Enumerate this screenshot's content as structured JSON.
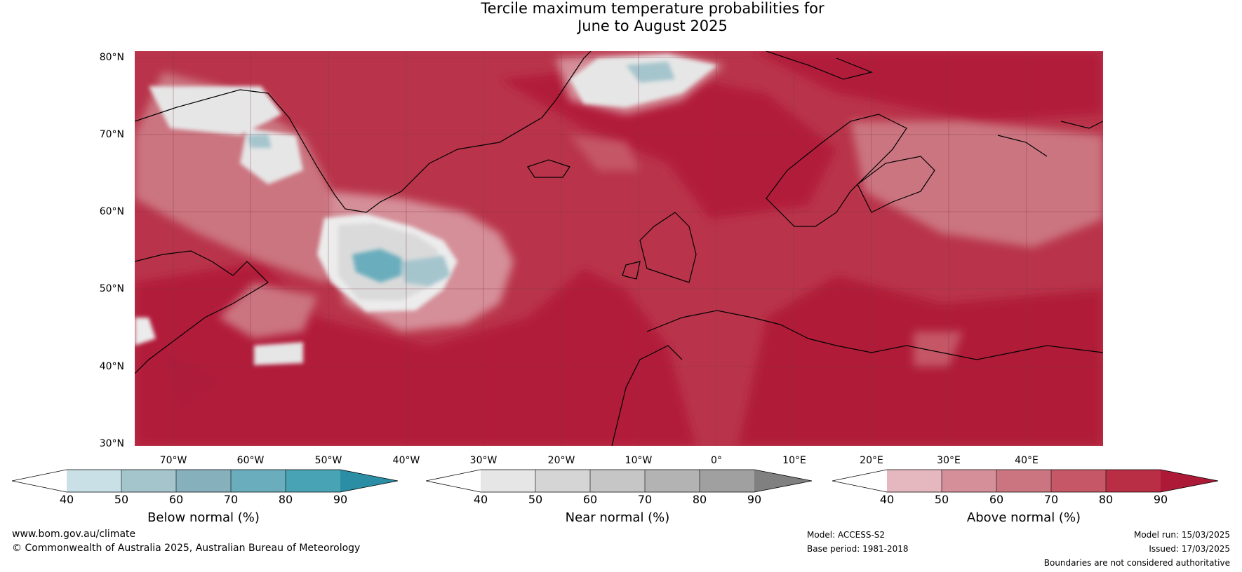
{
  "title_line1": "Tercile maximum temperature probabilities for",
  "title_line2": "June to August 2025",
  "latitudes": [
    "80°N",
    "70°N",
    "60°N",
    "50°N",
    "40°N",
    "30°N"
  ],
  "longitudes": [
    "70°W",
    "60°W",
    "50°W",
    "40°W",
    "30°W",
    "20°W",
    "10°W",
    "0°",
    "10°E",
    "20°E",
    "30°E",
    "40°E"
  ],
  "colorbars": {
    "below": {
      "label": "Below normal (%)",
      "ticks": [
        "40",
        "50",
        "60",
        "70",
        "80",
        "90"
      ],
      "colors": [
        "#ffffff",
        "#c8e0e6",
        "#a5c5cd",
        "#87b0bd",
        "#6aadbd",
        "#48a3b4",
        "#2b8ea4"
      ]
    },
    "near": {
      "label": "Near normal (%)",
      "ticks": [
        "40",
        "50",
        "60",
        "70",
        "80",
        "90"
      ],
      "colors": [
        "#ffffff",
        "#e6e6e6",
        "#d5d5d5",
        "#c6c6c6",
        "#b3b3b3",
        "#a0a0a0",
        "#808080"
      ]
    },
    "above": {
      "label": "Above normal (%)",
      "ticks": [
        "40",
        "50",
        "60",
        "70",
        "80",
        "90"
      ],
      "colors": [
        "#ffffff",
        "#e5b7bf",
        "#d58f99",
        "#cb7580",
        "#c55766",
        "#b92e44",
        "#ac1a37"
      ]
    }
  },
  "footer": {
    "website": "www.bom.gov.au/climate",
    "copyright": "© Commonwealth of Australia 2025, Australian Bureau of Meteorology",
    "model": "Model: ACCESS-S2",
    "base_period": "Base period: 1981-2018",
    "model_run": "Model run: 15/03/2025",
    "issued": "Issued: 17/03/2025",
    "disclaimer": "Boundaries are not considered authoritative"
  }
}
